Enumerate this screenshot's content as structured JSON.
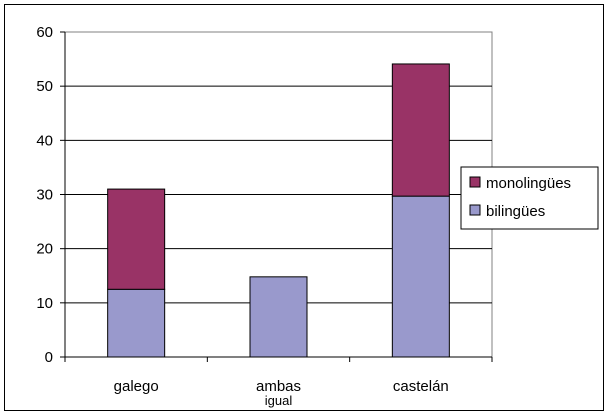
{
  "chart_data": {
    "type": "bar",
    "stacked": true,
    "categories": [
      "galego",
      "ambas",
      "castelán"
    ],
    "category_sublabels": [
      "",
      "igual",
      ""
    ],
    "series": [
      {
        "name": "bilingües",
        "color": "#9999cc",
        "values": [
          12.5,
          14.8,
          29.7
        ]
      },
      {
        "name": "monolingües",
        "color": "#993366",
        "values": [
          18.5,
          0,
          24.4
        ]
      }
    ],
    "ylim": [
      0,
      60
    ],
    "yticks": [
      0,
      10,
      20,
      30,
      40,
      50,
      60
    ],
    "grid": true,
    "legend_position": "right"
  }
}
